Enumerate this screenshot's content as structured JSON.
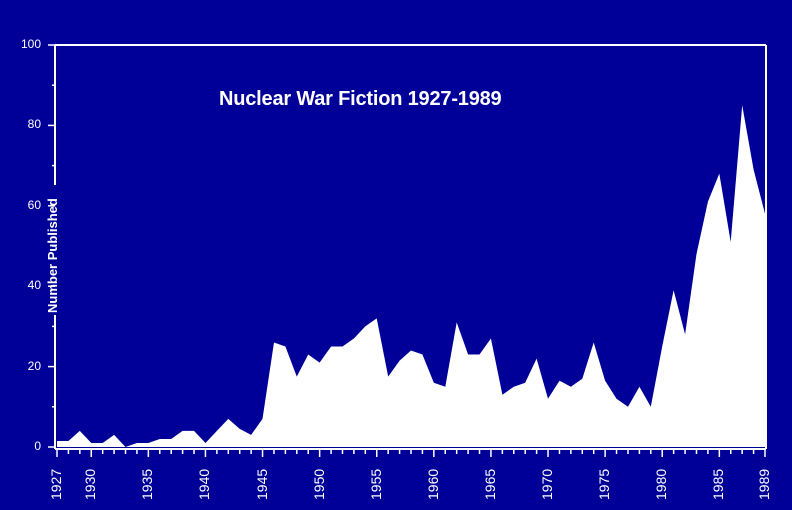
{
  "chart_data": {
    "type": "area",
    "title": "Nuclear War Fiction 1927-1989",
    "xlabel": "",
    "ylabel": "Number Published",
    "ylim": [
      0,
      100
    ],
    "xlim": [
      1927,
      1989
    ],
    "grid": false,
    "legend": null,
    "yticks": [
      "0",
      "20",
      "40",
      "60",
      "80",
      "100"
    ],
    "xticks": [
      "1927",
      "1930",
      "1935",
      "1940",
      "1945",
      "1950",
      "1955",
      "1960",
      "1965",
      "1970",
      "1975",
      "1980",
      "1985",
      "1989"
    ],
    "x": [
      1927,
      1928,
      1929,
      1930,
      1931,
      1932,
      1933,
      1934,
      1935,
      1936,
      1937,
      1938,
      1939,
      1940,
      1941,
      1942,
      1943,
      1944,
      1945,
      1946,
      1947,
      1948,
      1949,
      1950,
      1951,
      1952,
      1953,
      1954,
      1955,
      1956,
      1957,
      1958,
      1959,
      1960,
      1961,
      1962,
      1963,
      1964,
      1965,
      1966,
      1967,
      1968,
      1969,
      1970,
      1971,
      1972,
      1973,
      1974,
      1975,
      1976,
      1977,
      1978,
      1979,
      1980,
      1981,
      1982,
      1983,
      1984,
      1985,
      1986,
      1987,
      1988,
      1989
    ],
    "values": [
      1.5,
      1.5,
      4,
      1,
      1,
      3,
      0,
      1,
      1,
      2,
      2,
      4,
      4,
      1,
      4,
      7,
      4.5,
      3,
      7,
      26,
      25,
      17.5,
      23,
      21,
      25,
      25,
      27,
      30,
      32,
      17.5,
      21.5,
      24,
      23,
      16,
      15,
      31,
      23,
      23,
      27,
      13,
      15,
      16,
      22,
      12,
      16.5,
      15,
      17,
      26,
      16.5,
      12,
      10,
      15,
      10,
      25,
      39,
      28,
      48,
      61,
      68,
      51,
      85,
      69,
      58
    ],
    "colors": {
      "background": "#000099",
      "fill": "#ffffff",
      "axis": "#ffffff"
    }
  }
}
